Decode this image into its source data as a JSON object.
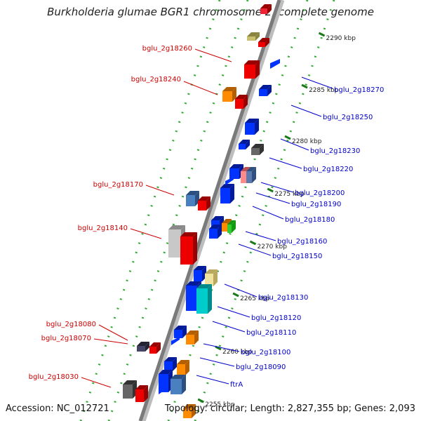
{
  "title": "Burkholderia glumae BGR1 chromosome 2, complete genome",
  "footer": {
    "accession": "Accession: NC_012721",
    "topology": "Topology: circular; Length: 2,827,355 bp; Genes: 2,093"
  },
  "colors": {
    "backbone": "#7a7a7a",
    "forward_label": "#cc0000",
    "reverse_label": "#0000cc",
    "tick": "#1a7a1a",
    "dotted_track": "#33aa33"
  },
  "ticks": [
    "2290 kbp",
    "2285 kbp",
    "2280 kbp",
    "2275 kbp",
    "2270 kbp",
    "2265 kbp",
    "2260 kbp",
    "2255 kbp"
  ],
  "labels_left": [
    "bglu_2g18260",
    "bglu_2g18240",
    "bglu_2g18170",
    "bglu_2g18140",
    "bglu_2g18080",
    "bglu_2g18070",
    "bglu_2g18030"
  ],
  "labels_right": [
    "bglu_2g18270",
    "bglu_2g18250",
    "bglu_2g18230",
    "bglu_2g18220",
    "bglu_2g18200",
    "bglu_2g18190",
    "bglu_2g18180",
    "bglu_2g18160",
    "bglu_2g18150",
    "bglu_2g18130",
    "bglu_2g18120",
    "bglu_2g18110",
    "bglu_2g18100",
    "bglu_2g18090",
    "ftrA"
  ]
}
